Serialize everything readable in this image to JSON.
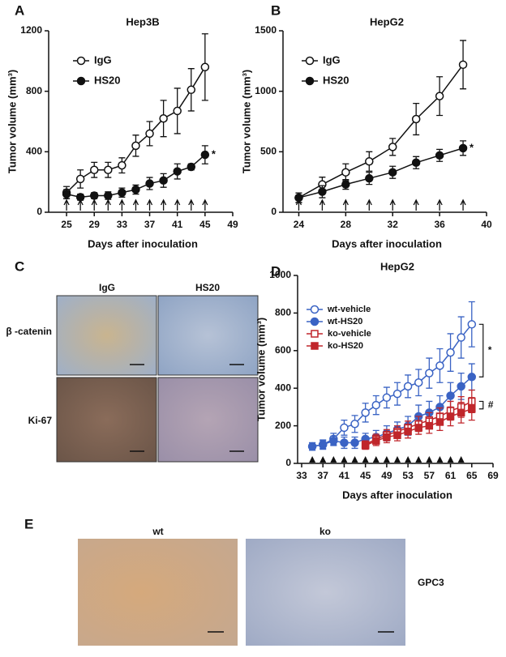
{
  "chart_data": [
    {
      "type": "line",
      "panel_label": "A",
      "title": "Hep3B",
      "xlabel": "Days after inoculation",
      "ylabel": "Tumor volume (mm³)",
      "xlim": [
        23,
        49
      ],
      "xticks": [
        25,
        29,
        33,
        37,
        41,
        45,
        49
      ],
      "ylim": [
        0,
        1200
      ],
      "yticks": [
        0,
        400,
        800,
        1200
      ],
      "treatment_marker": "arrow",
      "treatment_x": [
        25,
        27,
        29,
        31,
        33,
        35,
        37,
        39,
        41,
        43,
        45
      ],
      "annotations": [
        "*"
      ],
      "series": [
        {
          "name": "IgG",
          "color": "#111111",
          "marker": "open-circle",
          "x": [
            25,
            27,
            29,
            31,
            33,
            35,
            37,
            39,
            41,
            43,
            45
          ],
          "values": [
            130,
            220,
            280,
            280,
            310,
            440,
            520,
            620,
            670,
            810,
            960
          ],
          "errors": [
            40,
            60,
            50,
            50,
            50,
            70,
            80,
            120,
            150,
            140,
            220
          ]
        },
        {
          "name": "HS20",
          "color": "#111111",
          "marker": "filled-circle",
          "x": [
            25,
            27,
            29,
            31,
            33,
            35,
            37,
            39,
            41,
            43,
            45
          ],
          "values": [
            120,
            100,
            110,
            110,
            130,
            150,
            190,
            210,
            270,
            300,
            380
          ],
          "errors": [
            30,
            20,
            20,
            25,
            30,
            30,
            40,
            45,
            50,
            20,
            60
          ]
        }
      ]
    },
    {
      "type": "line",
      "panel_label": "B",
      "title": "HepG2",
      "xlabel": "Days after inoculation",
      "ylabel": "Tumor volume (mm³)",
      "xlim": [
        23,
        40
      ],
      "xticks": [
        24,
        28,
        32,
        36,
        40
      ],
      "ylim": [
        0,
        1500
      ],
      "yticks": [
        0,
        500,
        1000,
        1500
      ],
      "treatment_marker": "arrow",
      "treatment_x": [
        24,
        26,
        28,
        30,
        32,
        34,
        36,
        38
      ],
      "annotations": [
        "*"
      ],
      "series": [
        {
          "name": "IgG",
          "color": "#111111",
          "marker": "open-circle",
          "x": [
            24,
            26,
            28,
            30,
            32,
            34,
            36,
            38
          ],
          "values": [
            120,
            230,
            330,
            420,
            540,
            770,
            960,
            1220
          ],
          "errors": [
            40,
            60,
            70,
            80,
            70,
            130,
            160,
            200
          ]
        },
        {
          "name": "HS20",
          "color": "#111111",
          "marker": "filled-circle",
          "x": [
            24,
            26,
            28,
            30,
            32,
            34,
            36,
            38
          ],
          "values": [
            120,
            170,
            230,
            280,
            330,
            410,
            470,
            530
          ],
          "errors": [
            40,
            50,
            40,
            50,
            50,
            50,
            50,
            60
          ]
        }
      ]
    },
    {
      "type": "line",
      "panel_label": "D",
      "title": "HepG2",
      "xlabel": "Days after inoculation",
      "ylabel": "Tumor volume (mm³)",
      "xlim": [
        33,
        69
      ],
      "xticks": [
        33,
        37,
        41,
        45,
        49,
        53,
        57,
        61,
        65,
        69
      ],
      "ylim": [
        0,
        1000
      ],
      "yticks": [
        0,
        200,
        400,
        600,
        800,
        1000
      ],
      "treatment_marker": "triangle",
      "treatment_x": [
        35,
        37,
        39,
        41,
        43,
        45,
        47,
        49,
        51,
        53,
        55,
        57,
        59,
        61,
        63
      ],
      "annotations": [
        "*",
        "#"
      ],
      "series": [
        {
          "name": "wt-vehicle",
          "color": "#3a63c4",
          "marker": "open-circle",
          "x": [
            35,
            37,
            39,
            41,
            43,
            45,
            47,
            49,
            51,
            53,
            55,
            57,
            59,
            61,
            63,
            65
          ],
          "values": [
            90,
            100,
            130,
            190,
            210,
            270,
            310,
            350,
            370,
            410,
            430,
            480,
            520,
            590,
            670,
            740
          ],
          "errors": [
            20,
            25,
            30,
            40,
            45,
            50,
            50,
            55,
            60,
            60,
            70,
            80,
            90,
            100,
            110,
            120
          ]
        },
        {
          "name": "wt-HS20",
          "color": "#3a63c4",
          "marker": "filled-circle",
          "x": [
            35,
            37,
            39,
            41,
            43,
            45,
            47,
            49,
            51,
            53,
            55,
            57,
            59,
            61,
            63,
            65
          ],
          "values": [
            90,
            100,
            120,
            110,
            110,
            130,
            140,
            160,
            180,
            200,
            250,
            270,
            300,
            360,
            410,
            460
          ],
          "errors": [
            20,
            20,
            25,
            30,
            30,
            30,
            35,
            40,
            40,
            50,
            60,
            60,
            60,
            70,
            70,
            70
          ]
        },
        {
          "name": "ko-vehicle",
          "color": "#c0262b",
          "marker": "open-square",
          "x": [
            45,
            47,
            49,
            51,
            53,
            55,
            57,
            59,
            61,
            63,
            65
          ],
          "values": [
            100,
            130,
            150,
            170,
            190,
            210,
            230,
            250,
            280,
            300,
            330
          ],
          "errors": [
            20,
            25,
            30,
            30,
            35,
            40,
            40,
            45,
            50,
            55,
            60
          ]
        },
        {
          "name": "ko-HS20",
          "color": "#c0262b",
          "marker": "filled-square",
          "x": [
            45,
            47,
            49,
            51,
            53,
            55,
            57,
            59,
            61,
            63,
            65
          ],
          "values": [
            95,
            120,
            140,
            150,
            170,
            190,
            200,
            220,
            250,
            270,
            290
          ],
          "errors": [
            20,
            25,
            30,
            30,
            35,
            35,
            40,
            45,
            50,
            55,
            60
          ]
        }
      ]
    }
  ],
  "panel_c": {
    "panel_label": "C",
    "columns": [
      "IgG",
      "HS20"
    ],
    "rows": [
      "β -catenin",
      "Ki-67"
    ]
  },
  "panel_e": {
    "panel_label": "E",
    "columns": [
      "wt",
      "ko"
    ],
    "row_label": "GPC3"
  }
}
